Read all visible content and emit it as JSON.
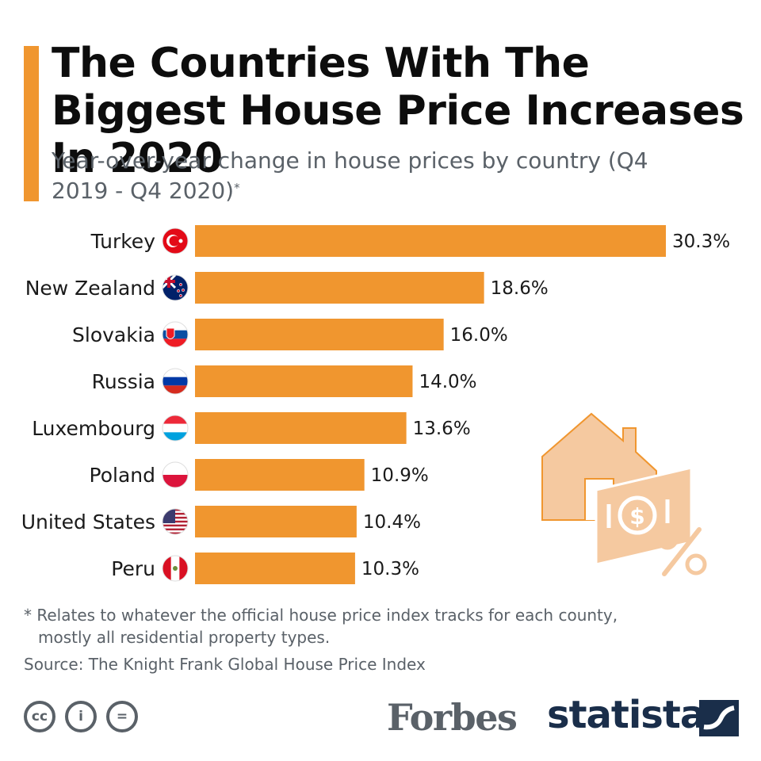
{
  "header": {
    "title": "The Countries With The Biggest House Price Increases In 2020",
    "subtitle": "Year-over-year change in house prices by country (Q4 2019 - Q4 2020)",
    "subtitle_marker": "*"
  },
  "chart_data": {
    "type": "bar",
    "orientation": "horizontal",
    "categories": [
      "Turkey",
      "New Zealand",
      "Slovakia",
      "Russia",
      "Luxembourg",
      "Poland",
      "United States",
      "Peru"
    ],
    "values": [
      30.3,
      18.6,
      16.0,
      14.0,
      13.6,
      10.9,
      10.4,
      10.3
    ],
    "value_labels": [
      "30.3%",
      "18.6%",
      "16.0%",
      "14.0%",
      "13.6%",
      "10.9%",
      "10.4%",
      "10.3%"
    ],
    "title": "The Countries With The Biggest House Price Increases In 2020",
    "subtitle": "Year-over-year change in house prices by country (Q4 2019 - Q4 2020)*",
    "xlabel": "",
    "ylabel": "",
    "xlim": [
      0,
      30.3
    ],
    "grid": false,
    "bar_color": "#f0962f",
    "flags": [
      "turkey-flag-icon",
      "new-zealand-flag-icon",
      "slovakia-flag-icon",
      "russia-flag-icon",
      "luxembourg-flag-icon",
      "poland-flag-icon",
      "united-states-flag-icon",
      "peru-flag-icon"
    ]
  },
  "footer": {
    "footnote_line1": "* Relates to whatever the official house price index tracks for each county,",
    "footnote_line2": "mostly all residential property types.",
    "source": "Source: The Knight Frank Global House Price Index",
    "license_icons": [
      "cc-icon",
      "attribution-icon",
      "no-derivatives-icon"
    ],
    "license_labels": [
      "cc",
      "i",
      "="
    ],
    "forbes": "Forbes",
    "statista": "statista"
  },
  "colors": {
    "accent": "#f0962f",
    "illustration": "#f5c9a0",
    "text_gray": "#5a6168",
    "statista_navy": "#1a2e4a"
  }
}
